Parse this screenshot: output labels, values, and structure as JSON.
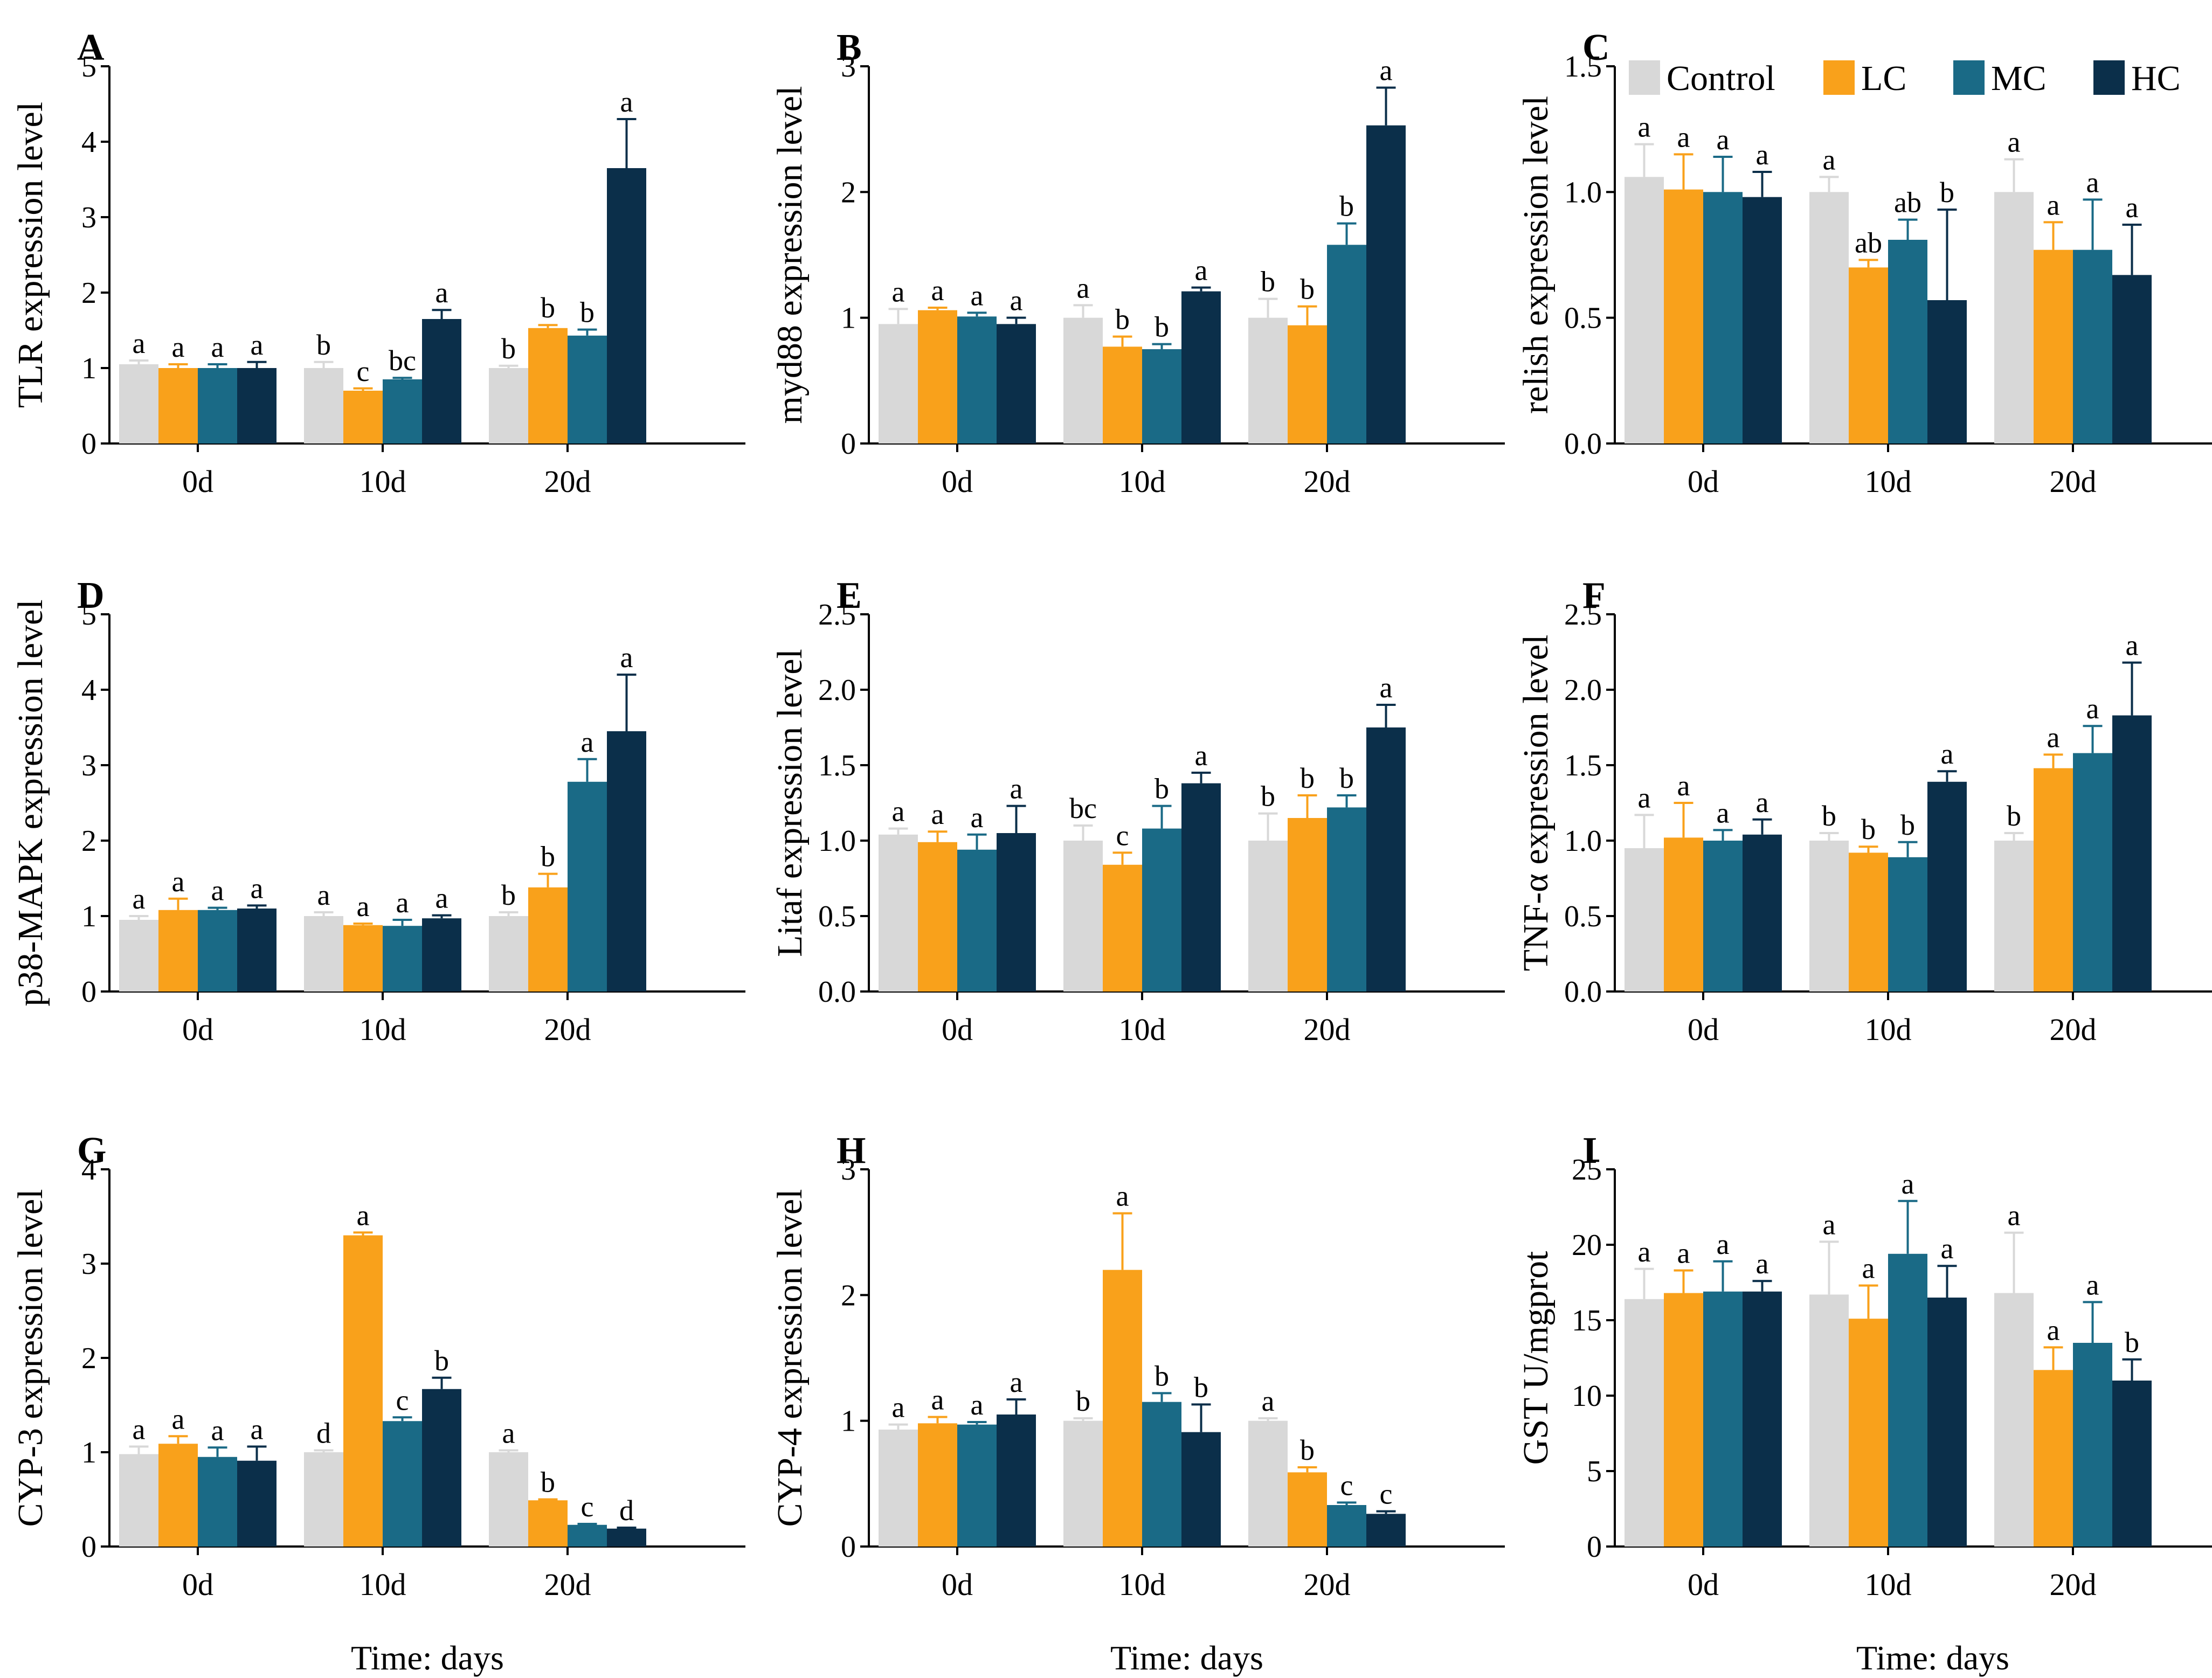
{
  "figure": {
    "xlabel": "Time: days",
    "groups": [
      "Control",
      "LC",
      "MC",
      "HC"
    ],
    "colors": {
      "Control": "#d8d8d8",
      "LC": "#f9a11b",
      "MC": "#1a6a86",
      "HC": "#0b2f4a"
    }
  },
  "chart_data": [
    {
      "type": "bar",
      "panel": "A",
      "ylabel": "TLR expression level",
      "categories": [
        "0d",
        "10d",
        "20d"
      ],
      "ylim": [
        0,
        5
      ],
      "yticks": [
        "0",
        "1",
        "2",
        "3",
        "4",
        "5"
      ],
      "series": [
        {
          "name": "Control",
          "values": [
            1.05,
            1.0,
            1.0
          ],
          "errors": [
            0.05,
            0.08,
            0.03
          ],
          "letters": [
            "a",
            "b",
            "b"
          ]
        },
        {
          "name": "LC",
          "values": [
            1.0,
            0.7,
            1.53
          ],
          "errors": [
            0.05,
            0.03,
            0.04
          ],
          "letters": [
            "a",
            "c",
            "b"
          ]
        },
        {
          "name": "MC",
          "values": [
            1.0,
            0.85,
            1.43
          ],
          "errors": [
            0.05,
            0.02,
            0.08
          ],
          "letters": [
            "a",
            "bc",
            "b"
          ]
        },
        {
          "name": "HC",
          "values": [
            1.0,
            1.65,
            3.65
          ],
          "errors": [
            0.08,
            0.12,
            0.65
          ],
          "letters": [
            "a",
            "a",
            "a"
          ]
        }
      ]
    },
    {
      "type": "bar",
      "panel": "B",
      "ylabel": "myd88 expression level",
      "categories": [
        "0d",
        "10d",
        "20d"
      ],
      "ylim": [
        0,
        3
      ],
      "yticks": [
        "0",
        "1",
        "2",
        "3"
      ],
      "series": [
        {
          "name": "Control",
          "values": [
            0.95,
            1.0,
            1.0
          ],
          "errors": [
            0.12,
            0.1,
            0.15
          ],
          "letters": [
            "a",
            "a",
            "b"
          ]
        },
        {
          "name": "LC",
          "values": [
            1.06,
            0.77,
            0.94
          ],
          "errors": [
            0.02,
            0.08,
            0.15
          ],
          "letters": [
            "a",
            "b",
            "b"
          ]
        },
        {
          "name": "MC",
          "values": [
            1.01,
            0.75,
            1.58
          ],
          "errors": [
            0.03,
            0.04,
            0.17
          ],
          "letters": [
            "a",
            "b",
            "b"
          ]
        },
        {
          "name": "HC",
          "values": [
            0.95,
            1.21,
            2.53
          ],
          "errors": [
            0.05,
            0.03,
            0.3
          ],
          "letters": [
            "a",
            "a",
            "a"
          ]
        }
      ]
    },
    {
      "type": "bar",
      "panel": "C",
      "ylabel": "relish expression level",
      "categories": [
        "0d",
        "10d",
        "20d"
      ],
      "ylim": [
        0,
        1.5
      ],
      "yticks": [
        "0.0",
        "0.5",
        "1.0",
        "1.5"
      ],
      "legend": [
        "Control",
        "LC",
        "MC",
        "HC"
      ],
      "series": [
        {
          "name": "Control",
          "values": [
            1.06,
            1.0,
            1.0
          ],
          "errors": [
            0.13,
            0.06,
            0.13
          ],
          "letters": [
            "a",
            "a",
            "a"
          ]
        },
        {
          "name": "LC",
          "values": [
            1.01,
            0.7,
            0.77
          ],
          "errors": [
            0.14,
            0.03,
            0.11
          ],
          "letters": [
            "a",
            "ab",
            "a"
          ]
        },
        {
          "name": "MC",
          "values": [
            1.0,
            0.81,
            0.77
          ],
          "errors": [
            0.14,
            0.08,
            0.2
          ],
          "letters": [
            "a",
            "ab",
            "a"
          ]
        },
        {
          "name": "HC",
          "values": [
            0.98,
            0.57,
            0.67
          ],
          "errors": [
            0.1,
            0.36,
            0.2
          ],
          "letters": [
            "a",
            "b",
            "a"
          ]
        }
      ]
    },
    {
      "type": "bar",
      "panel": "D",
      "ylabel": "p38-MAPK expression level",
      "categories": [
        "0d",
        "10d",
        "20d"
      ],
      "ylim": [
        0,
        5
      ],
      "yticks": [
        "0",
        "1",
        "2",
        "3",
        "4",
        "5"
      ],
      "series": [
        {
          "name": "Control",
          "values": [
            0.95,
            1.0,
            1.0
          ],
          "errors": [
            0.05,
            0.05,
            0.05
          ],
          "letters": [
            "a",
            "a",
            "b"
          ]
        },
        {
          "name": "LC",
          "values": [
            1.08,
            0.88,
            1.38
          ],
          "errors": [
            0.15,
            0.02,
            0.18
          ],
          "letters": [
            "a",
            "a",
            "b"
          ]
        },
        {
          "name": "MC",
          "values": [
            1.08,
            0.87,
            2.78
          ],
          "errors": [
            0.03,
            0.08,
            0.3
          ],
          "letters": [
            "a",
            "a",
            "a"
          ]
        },
        {
          "name": "HC",
          "values": [
            1.1,
            0.97,
            3.45
          ],
          "errors": [
            0.04,
            0.04,
            0.75
          ],
          "letters": [
            "a",
            "a",
            "a"
          ]
        }
      ]
    },
    {
      "type": "bar",
      "panel": "E",
      "ylabel": "Litaf expression level",
      "categories": [
        "0d",
        "10d",
        "20d"
      ],
      "ylim": [
        0,
        2.5
      ],
      "yticks": [
        "0.0",
        "0.5",
        "1.0",
        "1.5",
        "2.0",
        "2.5"
      ],
      "series": [
        {
          "name": "Control",
          "values": [
            1.04,
            1.0,
            1.0
          ],
          "errors": [
            0.04,
            0.1,
            0.18
          ],
          "letters": [
            "a",
            "bc",
            "b"
          ]
        },
        {
          "name": "LC",
          "values": [
            0.99,
            0.84,
            1.15
          ],
          "errors": [
            0.07,
            0.08,
            0.15
          ],
          "letters": [
            "a",
            "c",
            "b"
          ]
        },
        {
          "name": "MC",
          "values": [
            0.94,
            1.08,
            1.22
          ],
          "errors": [
            0.1,
            0.15,
            0.08
          ],
          "letters": [
            "a",
            "b",
            "b"
          ]
        },
        {
          "name": "HC",
          "values": [
            1.05,
            1.38,
            1.75
          ],
          "errors": [
            0.18,
            0.07,
            0.15
          ],
          "letters": [
            "a",
            "a",
            "a"
          ]
        }
      ]
    },
    {
      "type": "bar",
      "panel": "F",
      "ylabel": "TNF-α expression level",
      "categories": [
        "0d",
        "10d",
        "20d"
      ],
      "ylim": [
        0,
        2.5
      ],
      "yticks": [
        "0.0",
        "0.5",
        "1.0",
        "1.5",
        "2.0",
        "2.5"
      ],
      "series": [
        {
          "name": "Control",
          "values": [
            0.95,
            1.0,
            1.0
          ],
          "errors": [
            0.22,
            0.05,
            0.05
          ],
          "letters": [
            "a",
            "b",
            "b"
          ]
        },
        {
          "name": "LC",
          "values": [
            1.02,
            0.92,
            1.48
          ],
          "errors": [
            0.23,
            0.04,
            0.09
          ],
          "letters": [
            "a",
            "b",
            "a"
          ]
        },
        {
          "name": "MC",
          "values": [
            1.0,
            0.89,
            1.58
          ],
          "errors": [
            0.07,
            0.1,
            0.18
          ],
          "letters": [
            "a",
            "b",
            "a"
          ]
        },
        {
          "name": "HC",
          "values": [
            1.04,
            1.39,
            1.83
          ],
          "errors": [
            0.1,
            0.07,
            0.35
          ],
          "letters": [
            "a",
            "a",
            "a"
          ]
        }
      ]
    },
    {
      "type": "bar",
      "panel": "G",
      "ylabel": "CYP-3 expression level",
      "categories": [
        "0d",
        "10d",
        "20d"
      ],
      "ylim": [
        0,
        4
      ],
      "yticks": [
        "0",
        "1",
        "2",
        "3",
        "4"
      ],
      "series": [
        {
          "name": "Control",
          "values": [
            0.98,
            1.0,
            1.0
          ],
          "errors": [
            0.08,
            0.02,
            0.02
          ],
          "letters": [
            "a",
            "d",
            "a"
          ]
        },
        {
          "name": "LC",
          "values": [
            1.09,
            3.3,
            0.49
          ],
          "errors": [
            0.08,
            0.03,
            0.01
          ],
          "letters": [
            "a",
            "a",
            "b"
          ]
        },
        {
          "name": "MC",
          "values": [
            0.95,
            1.33,
            0.23
          ],
          "errors": [
            0.1,
            0.04,
            0.01
          ],
          "letters": [
            "a",
            "c",
            "c"
          ]
        },
        {
          "name": "HC",
          "values": [
            0.91,
            1.67,
            0.19
          ],
          "errors": [
            0.15,
            0.12,
            0.01
          ],
          "letters": [
            "a",
            "b",
            "d"
          ]
        }
      ]
    },
    {
      "type": "bar",
      "panel": "H",
      "ylabel": "CYP-4 expression level",
      "categories": [
        "0d",
        "10d",
        "20d"
      ],
      "ylim": [
        0,
        3
      ],
      "yticks": [
        "0",
        "1",
        "2",
        "3"
      ],
      "series": [
        {
          "name": "Control",
          "values": [
            0.93,
            1.0,
            1.0
          ],
          "errors": [
            0.04,
            0.02,
            0.02
          ],
          "letters": [
            "a",
            "b",
            "a"
          ]
        },
        {
          "name": "LC",
          "values": [
            0.98,
            2.2,
            0.59
          ],
          "errors": [
            0.05,
            0.45,
            0.04
          ],
          "letters": [
            "a",
            "a",
            "b"
          ]
        },
        {
          "name": "MC",
          "values": [
            0.97,
            1.15,
            0.33
          ],
          "errors": [
            0.02,
            0.07,
            0.02
          ],
          "letters": [
            "a",
            "b",
            "c"
          ]
        },
        {
          "name": "HC",
          "values": [
            1.05,
            0.91,
            0.26
          ],
          "errors": [
            0.12,
            0.22,
            0.02
          ],
          "letters": [
            "a",
            "b",
            "c"
          ]
        }
      ]
    },
    {
      "type": "bar",
      "panel": "I",
      "ylabel": "GST U/mgprot",
      "categories": [
        "0d",
        "10d",
        "20d"
      ],
      "ylim": [
        0,
        25
      ],
      "yticks": [
        "0",
        "5",
        "10",
        "15",
        "20",
        "25"
      ],
      "series": [
        {
          "name": "Control",
          "values": [
            16.4,
            16.7,
            16.8
          ],
          "errors": [
            2.0,
            3.5,
            4.0
          ],
          "letters": [
            "a",
            "a",
            "a"
          ]
        },
        {
          "name": "LC",
          "values": [
            16.8,
            15.1,
            11.7
          ],
          "errors": [
            1.5,
            2.2,
            1.5
          ],
          "letters": [
            "a",
            "a",
            "a"
          ]
        },
        {
          "name": "MC",
          "values": [
            16.9,
            19.4,
            13.5
          ],
          "errors": [
            2.0,
            3.5,
            2.7
          ],
          "letters": [
            "a",
            "a",
            "a"
          ]
        },
        {
          "name": "HC",
          "values": [
            16.9,
            16.5,
            11.0
          ],
          "errors": [
            0.7,
            2.1,
            1.4
          ],
          "letters": [
            "a",
            "a",
            "b"
          ]
        }
      ]
    }
  ]
}
